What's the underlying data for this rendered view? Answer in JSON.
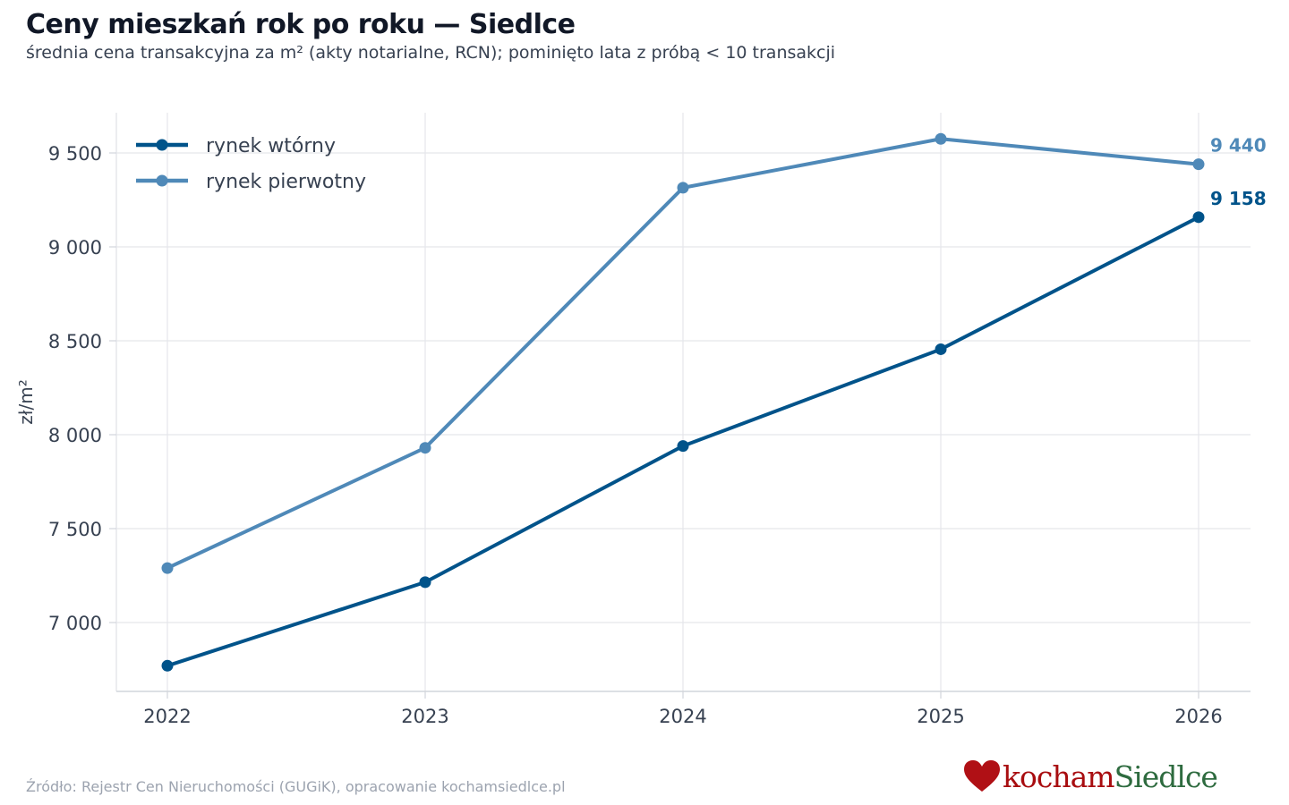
{
  "chart_data": {
    "type": "line",
    "title": "Ceny mieszkań rok po roku — Siedlce",
    "subtitle": "średnia cena transakcyjna za m² (akty notarialne, RCN); pominięto lata z próbą < 10 transakcji",
    "ylabel": "zł/m²",
    "xlabel": "",
    "x": [
      2022,
      2023,
      2024,
      2025,
      2026
    ],
    "x_tick_labels": [
      "2022",
      "2023",
      "2024",
      "2025",
      "2026"
    ],
    "y_ticks": [
      7000,
      7500,
      8000,
      8500,
      9000,
      9500
    ],
    "y_tick_labels": [
      "7 000",
      "7 500",
      "8 000",
      "8 500",
      "9 000",
      "9 500"
    ],
    "ylim": [
      6635,
      9715
    ],
    "xlim": [
      2021.8,
      2026.2
    ],
    "grid": true,
    "legend_position": "top-left",
    "series": [
      {
        "name": "rynek wtórny",
        "color": "#00538a",
        "values": [
          6770,
          7215,
          7940,
          8455,
          9158
        ],
        "end_label": "9 158"
      },
      {
        "name": "rynek pierwotny",
        "color": "#4f89b8",
        "values": [
          7290,
          7930,
          9315,
          9575,
          9440
        ],
        "end_label": "9 440"
      }
    ]
  },
  "footer": {
    "source": "Źródło: Rejestr Cen Nieruchomości (GUGiK), opracowanie kochamsiedlce.pl",
    "brand_part1": "kocham",
    "brand_part2": "Siedlce",
    "brand_icon": "heart-icon"
  }
}
